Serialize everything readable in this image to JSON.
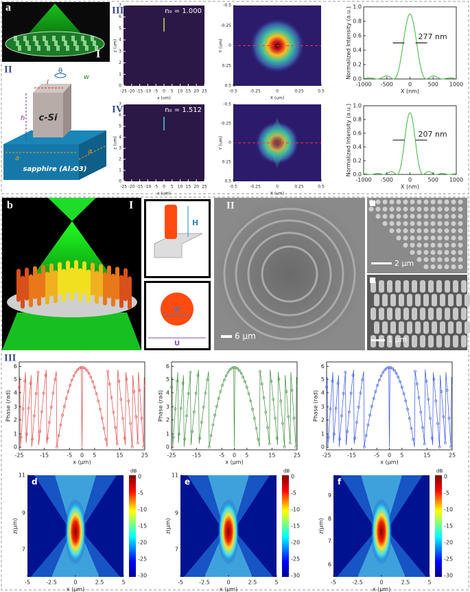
{
  "panel_a": {
    "label": "a",
    "image_label": "I",
    "schematic_label": "II",
    "row_labels": [
      "III",
      "IV"
    ],
    "schematic": {
      "l": "l",
      "theta": "θ",
      "w": "w",
      "h": "h",
      "pillar": "c-Si",
      "a_left": "a",
      "a_right": "a",
      "substrate": "sapphire (Al₂O3)"
    },
    "rows": [
      {
        "n0": "n₀ = 1.000",
        "field": {
          "xticks": [
            "-25",
            "-20",
            "-15",
            "-10",
            "-5",
            "0",
            "5",
            "10",
            "15",
            "20",
            "25"
          ],
          "yticks": [
            "0",
            "1",
            "2",
            "3",
            "4",
            "5",
            "6",
            "7"
          ],
          "xlabel": "x (um)",
          "ylabel": "z (um)"
        },
        "spot": {
          "xticks": [
            "-0.5",
            "-0.25",
            "0",
            "0.25",
            "0.5"
          ],
          "yticks": [
            "-0.5",
            "-0.25",
            "0",
            "0.25",
            "0.5"
          ],
          "xlabel": "X (um)",
          "ylabel": "Y (um)"
        },
        "profile": {
          "xticks": [
            "-1000",
            "-500",
            "0",
            "500",
            "1000"
          ],
          "yticks": [
            "0.0",
            "0.2",
            "0.4",
            "0.6",
            "0.8",
            "1.0"
          ],
          "xlabel": "X (nm)",
          "ylabel": "Normalized Intensity (a.u.)",
          "fwhm": "277 nm"
        }
      },
      {
        "n0": "n₀ = 1.512",
        "field": {
          "xticks": [
            "-25",
            "-20",
            "-15",
            "-10",
            "-5",
            "0",
            "5",
            "10",
            "15",
            "20",
            "25"
          ],
          "yticks": [
            "0",
            "1",
            "2",
            "3",
            "4",
            "5",
            "6",
            "7"
          ],
          "xlabel": "x (um)",
          "ylabel": "z (um)"
        },
        "spot": {
          "xticks": [
            "-0.5",
            "-0.25",
            "0",
            "0.25",
            "0.5"
          ],
          "yticks": [
            "-0.5",
            "-0.25",
            "0",
            "0.25",
            "0.5"
          ],
          "xlabel": "X (um)",
          "ylabel": "Y (um)"
        },
        "profile": {
          "xticks": [
            "-1000",
            "-500",
            "0",
            "500",
            "1000"
          ],
          "yticks": [
            "0.0",
            "0.2",
            "0.4",
            "0.6",
            "0.8",
            "1.0"
          ],
          "xlabel": "X (nm)",
          "ylabel": "Normalized Intensity (a.u.)",
          "fwhm": "207 nm"
        }
      }
    ]
  },
  "panel_b": {
    "label": "b",
    "render_label": "I",
    "sem_label": "II",
    "plots_label": "III",
    "unit_cell": {
      "height": "H",
      "diameter": "D",
      "period": "U"
    },
    "scale_bars": [
      "6 μm",
      "2 μm",
      "1 μm"
    ],
    "phase_plots": [
      {
        "xticks": [
          "-25",
          "-15",
          "-5",
          "0",
          "5",
          "15",
          "25"
        ],
        "yticks": [
          "0",
          "1",
          "2",
          "3",
          "4",
          "5",
          "6"
        ],
        "xlabel": "x (μm)",
        "ylabel": "Phase (rad)"
      },
      {
        "xticks": [
          "-25",
          "-15",
          "-5",
          "0",
          "5",
          "15",
          "25"
        ],
        "yticks": [
          "0",
          "1",
          "2",
          "3",
          "4",
          "5",
          "6"
        ],
        "xlabel": "x (μm)",
        "ylabel": "Phase (rad)"
      },
      {
        "xticks": [
          "-25",
          "-15",
          "-5",
          "0",
          "5",
          "15",
          "25"
        ],
        "yticks": [
          "0",
          "1",
          "2",
          "3",
          "4",
          "5",
          "6"
        ],
        "xlabel": "x (μm)",
        "ylabel": "Phase (rad)"
      }
    ],
    "heatmaps": [
      {
        "label": "d",
        "xticks": [
          "-5",
          "-2.5",
          "0",
          "2.5",
          "5"
        ],
        "yticks": [
          "7",
          "9",
          "11"
        ],
        "xlabel": "x (μm)",
        "ylabel": "z(μm)",
        "colorbar_title": "dB",
        "colorbar_ticks": [
          "0",
          "-5",
          "-10",
          "-15",
          "-20",
          "-25",
          "-30"
        ]
      },
      {
        "label": "e",
        "xticks": [
          "-5",
          "-2.5",
          "0",
          "2.5",
          "5"
        ],
        "yticks": [
          "7",
          "9",
          "11"
        ],
        "xlabel": "x (μm)",
        "ylabel": "z(μm)",
        "colorbar_title": "dB",
        "colorbar_ticks": [
          "0",
          "-5",
          "-10",
          "-15",
          "-20",
          "-25",
          "-30"
        ]
      },
      {
        "label": "f",
        "xticks": [
          "-5",
          "-2.5",
          "0",
          "2.5",
          "5"
        ],
        "yticks": [
          "6",
          "7",
          "8",
          "9"
        ],
        "xlabel": "x (μm)",
        "ylabel": "z(μm)",
        "colorbar_title": "dB",
        "colorbar_ticks": [
          "0",
          "-5",
          "-10",
          "-15",
          "-20",
          "-25",
          "-30"
        ]
      }
    ]
  }
}
